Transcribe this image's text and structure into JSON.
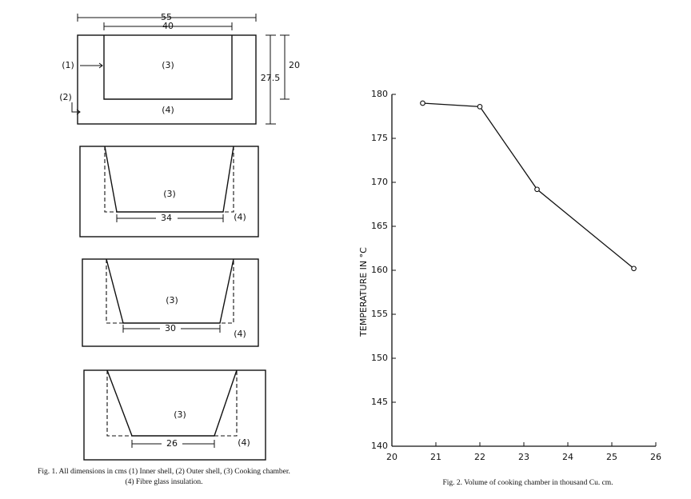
{
  "figure1": {
    "diagrams": [
      {
        "dimensions": [
          "55",
          "40",
          "20",
          "27.5"
        ],
        "labels": [
          "(1)",
          "(2)",
          "(3)",
          "(4)"
        ]
      },
      {
        "dimensions": [
          "34"
        ],
        "labels": [
          "(3)",
          "(4)"
        ]
      },
      {
        "dimensions": [
          "30"
        ],
        "labels": [
          "(3)",
          "(4)"
        ]
      },
      {
        "dimensions": [
          "26"
        ],
        "labels": [
          "(3)",
          "(4)"
        ]
      }
    ],
    "caption": [
      "Fig. 1. All dimensions in cms (1) Inner shell, (2) Outer shell, (3) Cooking chamber.",
      "(4) Fibre glass insulation."
    ]
  },
  "chart_data": {
    "type": "line",
    "x_label": "Fig. 2. Volume of cooking chamber in thousand Cu. cm.",
    "y_label": "TEMPERATURE IN °C",
    "x": [
      20.7,
      22,
      23.3,
      25.5
    ],
    "series": [
      {
        "color": "#111111",
        "values": [
          179,
          178.6,
          169.2,
          160.2
        ]
      }
    ],
    "xlim": [
      20,
      26
    ],
    "xticks": [
      20,
      21,
      22,
      23,
      24,
      25,
      26
    ],
    "ylim": [
      140,
      180
    ],
    "yticks": [
      140,
      145,
      150,
      155,
      160,
      165,
      170,
      175,
      180
    ],
    "grid": false
  }
}
